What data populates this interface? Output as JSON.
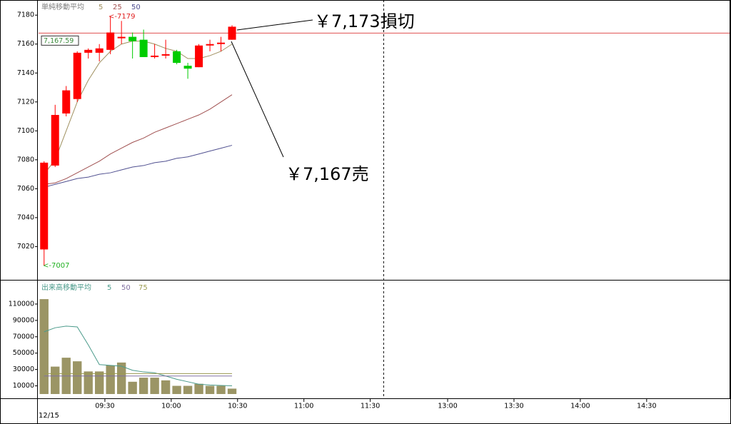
{
  "chart_data": [
    {
      "type": "candlestick",
      "legend_title": "単純移動平均",
      "x": [
        0.5,
        1.5,
        2.5,
        3.5,
        4.5,
        5.5,
        6.5,
        7.5,
        8.5,
        9.5,
        10.5,
        11.5,
        12.5,
        13.5,
        14.5,
        15.5,
        16.5,
        17.5
      ],
      "open": [
        7018,
        7076,
        7112,
        7122,
        7154,
        7154,
        7156,
        7164,
        7165,
        7163,
        7151,
        7152,
        7155,
        7145,
        7144,
        7159,
        7160,
        7163
      ],
      "high": [
        7079,
        7118,
        7131,
        7155,
        7157,
        7160,
        7179,
        7176,
        7168,
        7170,
        7160,
        7163,
        7156,
        7147,
        7160,
        7163,
        7165,
        7173
      ],
      "low": [
        7007,
        7075,
        7110,
        7120,
        7150,
        7148,
        7153,
        7160,
        7150,
        7151,
        7150,
        7150,
        7146,
        7136,
        7144,
        7155,
        7155,
        7163
      ],
      "close": [
        7078,
        7111,
        7128,
        7154,
        7156,
        7157,
        7168,
        7165,
        7162,
        7151,
        7152,
        7153,
        7147,
        7143,
        7159,
        7160,
        7161,
        7172
      ],
      "up_color": "#ff0000",
      "down_color": "#00cc00",
      "series": [
        {
          "name": "5",
          "color": "#a09060",
          "values": [
            7070,
            7080,
            7100,
            7120,
            7135,
            7147,
            7155,
            7160,
            7162,
            7162,
            7160,
            7157,
            7155,
            7150,
            7150,
            7152,
            7155,
            7160
          ]
        },
        {
          "name": "25",
          "color": "#a05050",
          "values": [
            7063,
            7064,
            7067,
            7071,
            7075,
            7079,
            7084,
            7088,
            7092,
            7095,
            7099,
            7102,
            7105,
            7108,
            7111,
            7115,
            7120,
            7125
          ]
        },
        {
          "name": "50",
          "color": "#505090",
          "values": [
            7061,
            7063,
            7065,
            7067,
            7068,
            7070,
            7071,
            7073,
            7075,
            7076,
            7078,
            7079,
            7081,
            7082,
            7084,
            7086,
            7088,
            7090
          ]
        }
      ],
      "price_line": {
        "value": 7167.59,
        "label": "7,167.59",
        "color": "#e05050"
      },
      "annotations": [
        "<-7179",
        "<-7007",
        "￥7,173損切",
        "￥7,167売"
      ],
      "xlim": [
        0,
        62.5
      ],
      "ylim": [
        6997,
        7188
      ],
      "yticks": [
        7020,
        7040,
        7060,
        7080,
        7100,
        7120,
        7140,
        7160,
        7180
      ]
    },
    {
      "type": "bar",
      "legend_title": "出来高移動平均",
      "x": [
        0.5,
        1.5,
        2.5,
        3.5,
        4.5,
        5.5,
        6.5,
        7.5,
        8.5,
        9.5,
        10.5,
        11.5,
        12.5,
        13.5,
        14.5,
        15.5,
        16.5,
        17.5
      ],
      "values": [
        116000,
        33500,
        44400,
        40000,
        27600,
        27600,
        35000,
        38500,
        15000,
        20000,
        20000,
        16700,
        10000,
        10000,
        12500,
        10000,
        10000,
        6600
      ],
      "color": "#9b9565",
      "series": [
        {
          "name": "5",
          "color": "#4a9a8a",
          "values": [
            76000,
            81000,
            83000,
            82000,
            60000,
            36000,
            35000,
            34000,
            29000,
            27000,
            26000,
            22000,
            18000,
            15000,
            12000,
            11000,
            10500,
            10000
          ]
        },
        {
          "name": "50",
          "color": "#8070a0",
          "values": [
            22000,
            22000,
            22000,
            22000,
            22000,
            22000,
            22000,
            22000,
            22000,
            22000,
            22000,
            22000,
            22000,
            22000,
            22000,
            22000,
            22000,
            22000
          ]
        },
        {
          "name": "75",
          "color": "#9a9a50",
          "values": [
            25000,
            25000,
            25000,
            25000,
            25000,
            25000,
            25000,
            25000,
            25000,
            25000,
            25000,
            25000,
            25000,
            25000,
            25000,
            25000,
            25000,
            25000
          ]
        }
      ],
      "xlabel": "12/15",
      "xlim": [
        0,
        62.5
      ],
      "ylim": [
        0,
        137000
      ],
      "yticks": [
        10000,
        30000,
        50000,
        70000,
        90000,
        110000
      ],
      "xticks": [
        {
          "value": 6,
          "label": "09:30"
        },
        {
          "value": 12,
          "label": "10:00"
        },
        {
          "value": 18,
          "label": "10:30"
        },
        {
          "value": 24,
          "label": "11:00"
        },
        {
          "value": 30,
          "label": "11:30"
        },
        {
          "value": 37,
          "label": "13:00"
        },
        {
          "value": 43,
          "label": "13:30"
        },
        {
          "value": 49,
          "label": "14:00"
        },
        {
          "value": 55,
          "label": "14:30"
        }
      ]
    }
  ]
}
